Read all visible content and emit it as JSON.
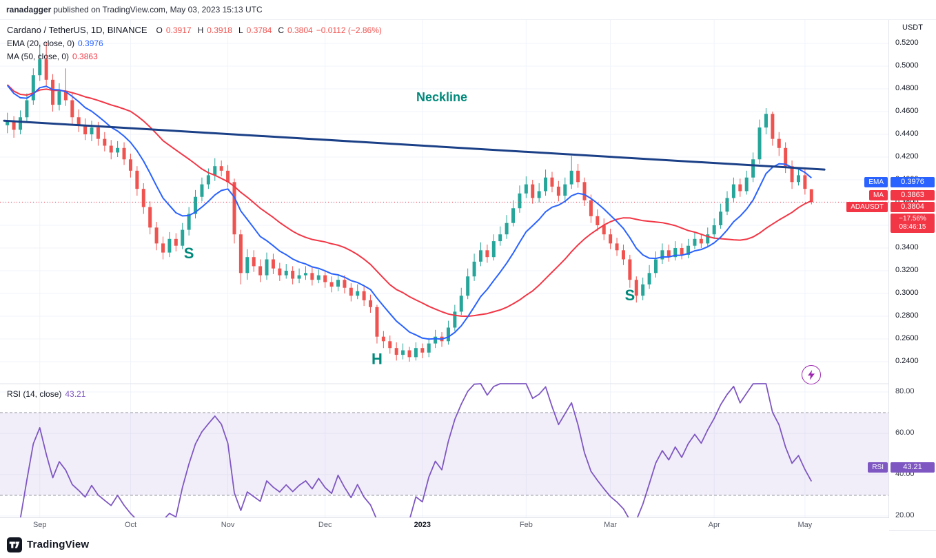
{
  "attribution": {
    "user": "ranadagger",
    "rest": "published on TradingView.com, May 03, 2023 15:13 UTC"
  },
  "header": {
    "symbol": "Cardano / TetherUS, 1D, BINANCE",
    "open_label": "O",
    "open": "0.3917",
    "high_label": "H",
    "high": "0.3918",
    "low_label": "L",
    "low": "0.3784",
    "close_label": "C",
    "close": "0.3804",
    "change": "−0.0112 (−2.86%)",
    "ema_label": "EMA (20, close, 0)",
    "ema_value": "0.3976",
    "ma_label": "MA (50, close, 0)",
    "ma_value": "0.3863"
  },
  "rsi_legend": {
    "label": "RSI (14, close)",
    "value": "43.21"
  },
  "axis": {
    "currency": "USDT"
  },
  "badges": {
    "ema": {
      "name": "EMA",
      "value": "0.3976"
    },
    "ma": {
      "name": "MA",
      "value": "0.3863"
    },
    "symbol": {
      "name": "ADAUSDT",
      "value": "0.3804",
      "change": "−17.56%",
      "countdown": "08:46:15"
    },
    "rsi": {
      "name": "RSI",
      "value": "43.21"
    }
  },
  "time_axis": {
    "months": [
      {
        "label": "Sep",
        "index": 5
      },
      {
        "label": "Oct",
        "index": 19
      },
      {
        "label": "Nov",
        "index": 34
      },
      {
        "label": "Dec",
        "index": 49
      },
      {
        "label": "2023",
        "index": 64,
        "strong": true
      },
      {
        "label": "Feb",
        "index": 80
      },
      {
        "label": "Mar",
        "index": 93
      },
      {
        "label": "Apr",
        "index": 109
      },
      {
        "label": "May",
        "index": 123
      }
    ]
  },
  "footer": {
    "brand": "TradingView"
  },
  "colors": {
    "up": "#26a69a",
    "down": "#ef5350",
    "ema": "#2962ff",
    "ma": "#f23645",
    "neckline": "#1b4087",
    "annotation": "#00897b",
    "rsi": "#7e57c2",
    "rsi_band": "rgba(126,87,194,0.1)",
    "rsi_dash": "#9598a1",
    "last_price": "#f23645",
    "symbol_badge": "#f23645",
    "grid": "#f0f3fa",
    "lightning": "#9c27b0"
  },
  "chart_data": {
    "type": "candlestick",
    "symbol": "ADAUSDT",
    "exchange": "BINANCE",
    "timeframe": "1D",
    "ylabel": "USDT",
    "ylim": [
      0.22,
      0.54
    ],
    "grid": true,
    "price_ticks": [
      0.52,
      0.5,
      0.48,
      0.46,
      0.44,
      0.42,
      0.4,
      0.38,
      0.36,
      0.34,
      0.32,
      0.3,
      0.28,
      0.26,
      0.24
    ],
    "candles": [
      [
        0.448,
        0.459,
        0.441,
        0.452
      ],
      [
        0.452,
        0.456,
        0.437,
        0.444
      ],
      [
        0.444,
        0.461,
        0.44,
        0.455
      ],
      [
        0.455,
        0.476,
        0.451,
        0.47
      ],
      [
        0.47,
        0.498,
        0.466,
        0.492
      ],
      [
        0.492,
        0.519,
        0.487,
        0.506
      ],
      [
        0.506,
        0.521,
        0.482,
        0.488
      ],
      [
        0.488,
        0.493,
        0.46,
        0.466
      ],
      [
        0.466,
        0.485,
        0.461,
        0.478
      ],
      [
        0.478,
        0.498,
        0.465,
        0.47
      ],
      [
        0.47,
        0.476,
        0.449,
        0.455
      ],
      [
        0.455,
        0.462,
        0.442,
        0.448
      ],
      [
        0.448,
        0.454,
        0.435,
        0.44
      ],
      [
        0.44,
        0.452,
        0.434,
        0.446
      ],
      [
        0.446,
        0.451,
        0.43,
        0.436
      ],
      [
        0.436,
        0.442,
        0.425,
        0.43
      ],
      [
        0.43,
        0.435,
        0.418,
        0.424
      ],
      [
        0.424,
        0.434,
        0.42,
        0.428
      ],
      [
        0.428,
        0.433,
        0.413,
        0.418
      ],
      [
        0.418,
        0.423,
        0.402,
        0.408
      ],
      [
        0.408,
        0.412,
        0.386,
        0.392
      ],
      [
        0.392,
        0.397,
        0.37,
        0.376
      ],
      [
        0.376,
        0.381,
        0.352,
        0.358
      ],
      [
        0.358,
        0.363,
        0.338,
        0.344
      ],
      [
        0.344,
        0.35,
        0.33,
        0.336
      ],
      [
        0.336,
        0.354,
        0.332,
        0.348
      ],
      [
        0.348,
        0.353,
        0.337,
        0.342
      ],
      [
        0.342,
        0.362,
        0.339,
        0.356
      ],
      [
        0.356,
        0.376,
        0.351,
        0.37
      ],
      [
        0.37,
        0.391,
        0.366,
        0.385
      ],
      [
        0.385,
        0.402,
        0.381,
        0.396
      ],
      [
        0.396,
        0.41,
        0.392,
        0.404
      ],
      [
        0.404,
        0.419,
        0.399,
        0.412
      ],
      [
        0.412,
        0.417,
        0.403,
        0.408
      ],
      [
        0.408,
        0.413,
        0.393,
        0.398
      ],
      [
        0.398,
        0.401,
        0.344,
        0.352
      ],
      [
        0.352,
        0.356,
        0.308,
        0.318
      ],
      [
        0.318,
        0.339,
        0.312,
        0.332
      ],
      [
        0.332,
        0.338,
        0.319,
        0.324
      ],
      [
        0.324,
        0.33,
        0.31,
        0.316
      ],
      [
        0.316,
        0.336,
        0.312,
        0.33
      ],
      [
        0.33,
        0.335,
        0.317,
        0.322
      ],
      [
        0.322,
        0.327,
        0.311,
        0.316
      ],
      [
        0.316,
        0.326,
        0.313,
        0.32
      ],
      [
        0.32,
        0.324,
        0.308,
        0.313
      ],
      [
        0.313,
        0.322,
        0.309,
        0.316
      ],
      [
        0.316,
        0.324,
        0.312,
        0.318
      ],
      [
        0.318,
        0.323,
        0.307,
        0.312
      ],
      [
        0.312,
        0.321,
        0.309,
        0.316
      ],
      [
        0.316,
        0.32,
        0.305,
        0.31
      ],
      [
        0.31,
        0.315,
        0.301,
        0.306
      ],
      [
        0.306,
        0.317,
        0.302,
        0.312
      ],
      [
        0.312,
        0.316,
        0.3,
        0.305
      ],
      [
        0.305,
        0.309,
        0.293,
        0.298
      ],
      [
        0.298,
        0.308,
        0.295,
        0.302
      ],
      [
        0.302,
        0.306,
        0.289,
        0.294
      ],
      [
        0.294,
        0.299,
        0.283,
        0.288
      ],
      [
        0.288,
        0.29,
        0.256,
        0.262
      ],
      [
        0.262,
        0.267,
        0.252,
        0.258
      ],
      [
        0.258,
        0.263,
        0.247,
        0.252
      ],
      [
        0.252,
        0.257,
        0.241,
        0.246
      ],
      [
        0.246,
        0.256,
        0.242,
        0.25
      ],
      [
        0.25,
        0.253,
        0.24,
        0.244
      ],
      [
        0.244,
        0.257,
        0.241,
        0.252
      ],
      [
        0.252,
        0.256,
        0.243,
        0.248
      ],
      [
        0.248,
        0.261,
        0.244,
        0.256
      ],
      [
        0.256,
        0.268,
        0.252,
        0.262
      ],
      [
        0.262,
        0.266,
        0.253,
        0.258
      ],
      [
        0.258,
        0.276,
        0.255,
        0.27
      ],
      [
        0.27,
        0.29,
        0.267,
        0.284
      ],
      [
        0.284,
        0.305,
        0.281,
        0.298
      ],
      [
        0.298,
        0.322,
        0.295,
        0.315
      ],
      [
        0.315,
        0.335,
        0.311,
        0.328
      ],
      [
        0.328,
        0.345,
        0.324,
        0.338
      ],
      [
        0.338,
        0.343,
        0.327,
        0.332
      ],
      [
        0.332,
        0.352,
        0.329,
        0.346
      ],
      [
        0.346,
        0.359,
        0.342,
        0.352
      ],
      [
        0.352,
        0.369,
        0.348,
        0.362
      ],
      [
        0.362,
        0.382,
        0.359,
        0.375
      ],
      [
        0.375,
        0.395,
        0.371,
        0.388
      ],
      [
        0.388,
        0.403,
        0.384,
        0.396
      ],
      [
        0.396,
        0.4,
        0.379,
        0.384
      ],
      [
        0.384,
        0.397,
        0.38,
        0.39
      ],
      [
        0.39,
        0.409,
        0.386,
        0.402
      ],
      [
        0.402,
        0.407,
        0.389,
        0.394
      ],
      [
        0.394,
        0.399,
        0.381,
        0.386
      ],
      [
        0.386,
        0.402,
        0.382,
        0.396
      ],
      [
        0.396,
        0.421,
        0.392,
        0.408
      ],
      [
        0.408,
        0.414,
        0.393,
        0.398
      ],
      [
        0.398,
        0.402,
        0.377,
        0.382
      ],
      [
        0.382,
        0.387,
        0.362,
        0.368
      ],
      [
        0.368,
        0.374,
        0.355,
        0.36
      ],
      [
        0.36,
        0.366,
        0.347,
        0.352
      ],
      [
        0.352,
        0.357,
        0.339,
        0.344
      ],
      [
        0.344,
        0.349,
        0.333,
        0.338
      ],
      [
        0.338,
        0.343,
        0.325,
        0.33
      ],
      [
        0.33,
        0.334,
        0.305,
        0.312
      ],
      [
        0.312,
        0.315,
        0.292,
        0.298
      ],
      [
        0.298,
        0.314,
        0.294,
        0.308
      ],
      [
        0.308,
        0.325,
        0.304,
        0.318
      ],
      [
        0.318,
        0.337,
        0.314,
        0.33
      ],
      [
        0.33,
        0.344,
        0.326,
        0.338
      ],
      [
        0.338,
        0.343,
        0.328,
        0.332
      ],
      [
        0.332,
        0.346,
        0.329,
        0.34
      ],
      [
        0.34,
        0.344,
        0.33,
        0.334
      ],
      [
        0.334,
        0.348,
        0.331,
        0.342
      ],
      [
        0.342,
        0.354,
        0.339,
        0.348
      ],
      [
        0.348,
        0.352,
        0.34,
        0.344
      ],
      [
        0.344,
        0.358,
        0.341,
        0.352
      ],
      [
        0.352,
        0.366,
        0.348,
        0.36
      ],
      [
        0.36,
        0.379,
        0.357,
        0.372
      ],
      [
        0.372,
        0.39,
        0.369,
        0.384
      ],
      [
        0.384,
        0.402,
        0.38,
        0.396
      ],
      [
        0.396,
        0.401,
        0.385,
        0.39
      ],
      [
        0.39,
        0.408,
        0.387,
        0.402
      ],
      [
        0.402,
        0.424,
        0.398,
        0.418
      ],
      [
        0.418,
        0.453,
        0.414,
        0.446
      ],
      [
        0.446,
        0.463,
        0.44,
        0.458
      ],
      [
        0.458,
        0.46,
        0.43,
        0.436
      ],
      [
        0.436,
        0.442,
        0.421,
        0.428
      ],
      [
        0.428,
        0.433,
        0.406,
        0.412
      ],
      [
        0.412,
        0.417,
        0.392,
        0.398
      ],
      [
        0.398,
        0.411,
        0.395,
        0.404
      ],
      [
        0.404,
        0.409,
        0.387,
        0.392
      ],
      [
        0.3917,
        0.3918,
        0.3784,
        0.3804
      ]
    ],
    "overlays": {
      "ema": {
        "period": 20,
        "last": 0.3976
      },
      "sma": {
        "period": 50,
        "last": 0.3863
      }
    },
    "trendline": {
      "label": "Neckline",
      "from_index": -0.5,
      "from_price": 0.452,
      "to_index": 126,
      "to_price": 0.409
    },
    "last_price": 0.3804,
    "labels": [
      {
        "text": "Neckline",
        "index": 67,
        "price": 0.469,
        "size": 18
      },
      {
        "text": "S",
        "index": 28,
        "price": 0.331,
        "size": 22
      },
      {
        "text": "H",
        "index": 57,
        "price": 0.238,
        "size": 22
      },
      {
        "text": "S",
        "index": 96,
        "price": 0.294,
        "size": 22
      }
    ],
    "rsi": {
      "period": 14,
      "last": 43.21,
      "upper_band": 70,
      "lower_band": 30,
      "ticks": [
        80,
        60,
        40,
        20
      ],
      "ylim": [
        18,
        84
      ],
      "legend_position": "top-left"
    }
  }
}
